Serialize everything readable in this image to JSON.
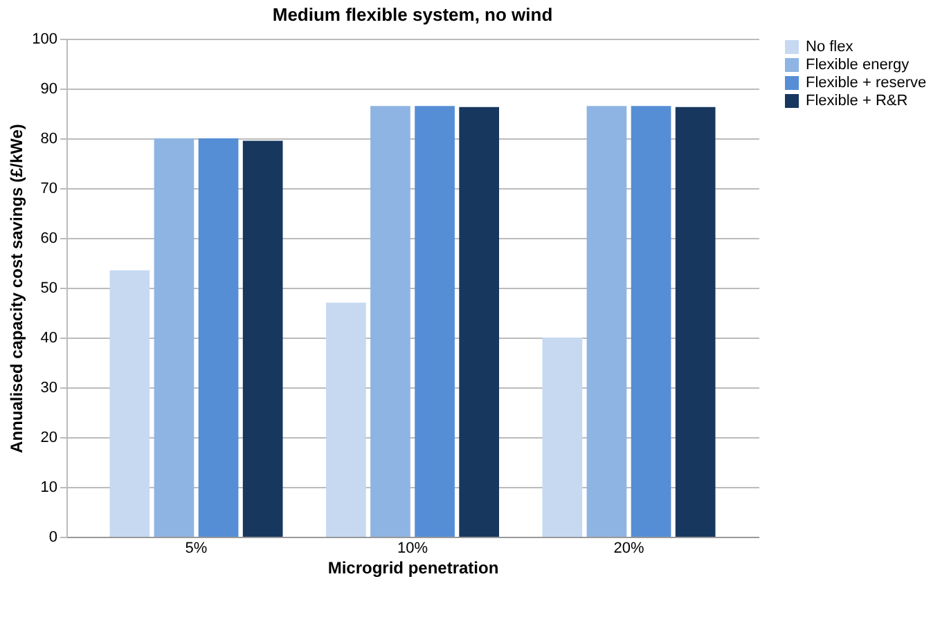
{
  "chart_data": {
    "type": "bar",
    "title": "Medium flexible system, no wind",
    "xlabel": "Microgrid penetration",
    "ylabel": "Annualised capacity cost savings (£/kWe)",
    "categories": [
      "5%",
      "10%",
      "20%"
    ],
    "series": [
      {
        "name": "No flex",
        "color": "#c6d9f1",
        "values": [
          53.5,
          47,
          40
        ]
      },
      {
        "name": "Flexible energy",
        "color": "#8eb4e3",
        "values": [
          80,
          86.5,
          86.5
        ]
      },
      {
        "name": "Flexible + reserve",
        "color": "#558ed5",
        "values": [
          80,
          86.5,
          86.5
        ]
      },
      {
        "name": "Flexible + R&R",
        "color": "#17375e",
        "values": [
          79.5,
          86.3,
          86.3
        ]
      }
    ],
    "ylim": [
      0,
      100
    ],
    "yticks": [
      0,
      10,
      20,
      30,
      40,
      50,
      60,
      70,
      80,
      90,
      100
    ],
    "grid": "y",
    "legend": "right"
  }
}
